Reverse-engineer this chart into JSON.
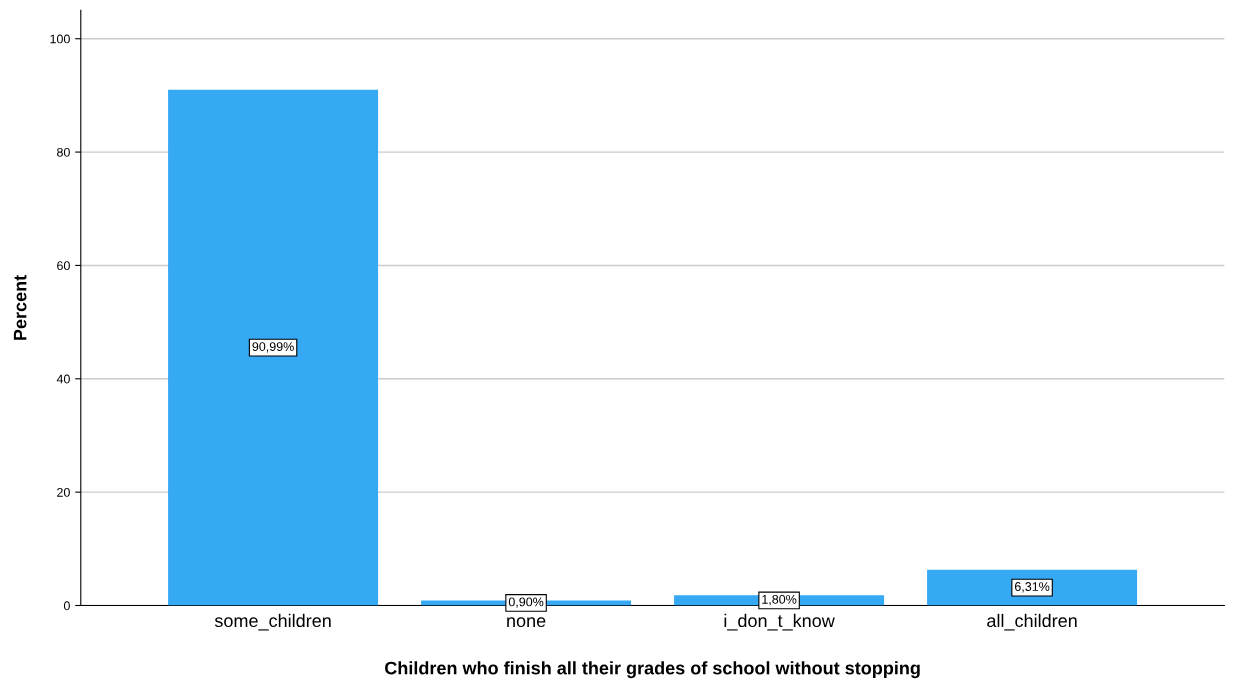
{
  "chart_data": {
    "type": "bar",
    "xlabel": "Children who finish all their grades of school without stopping",
    "ylabel": "Percent",
    "categories": [
      "some_children",
      "none",
      "i_don_t_know",
      "all_children"
    ],
    "values": [
      90.99,
      0.9,
      1.8,
      6.31
    ],
    "value_labels": [
      "90,99%",
      "0,90%",
      "1,80%",
      "6,31%"
    ],
    "color": "#35a9f3",
    "ylim": [
      0,
      105
    ],
    "yticks": [
      0,
      20,
      40,
      60,
      80,
      100
    ],
    "grid": "y"
  }
}
